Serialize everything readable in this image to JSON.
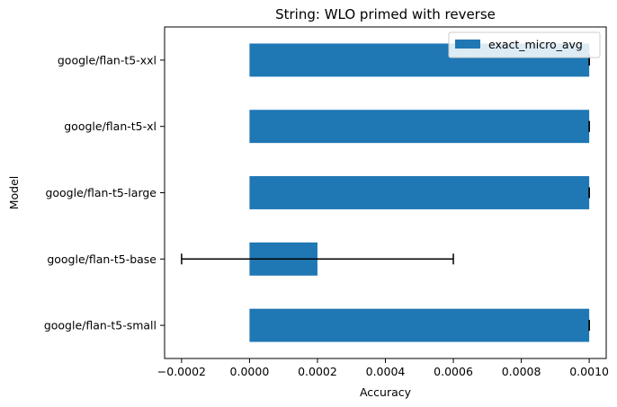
{
  "chart_data": {
    "type": "bar",
    "orientation": "horizontal",
    "title": "String: WLO primed with reverse",
    "xlabel": "Accuracy",
    "ylabel": "Model",
    "categories": [
      "google/flan-t5-small",
      "google/flan-t5-base",
      "google/flan-t5-large",
      "google/flan-t5-xl",
      "google/flan-t5-xxl"
    ],
    "series": [
      {
        "name": "exact_micro_avg",
        "color": "#1f77b4",
        "values": [
          0.001,
          0.0002,
          0.001,
          0.001,
          0.001
        ],
        "error": [
          0.0,
          0.0004,
          0.0,
          0.0,
          0.0
        ]
      }
    ],
    "xlim": [
      -0.00025,
      0.00105
    ],
    "xticks": [
      -0.0002,
      0.0,
      0.0002,
      0.0004,
      0.0006,
      0.0008,
      0.001
    ],
    "xtick_labels": [
      "−0.0002",
      "0.0000",
      "0.0002",
      "0.0004",
      "0.0006",
      "0.0008",
      "0.0010"
    ],
    "grid": false,
    "legend_position": "upper right"
  }
}
